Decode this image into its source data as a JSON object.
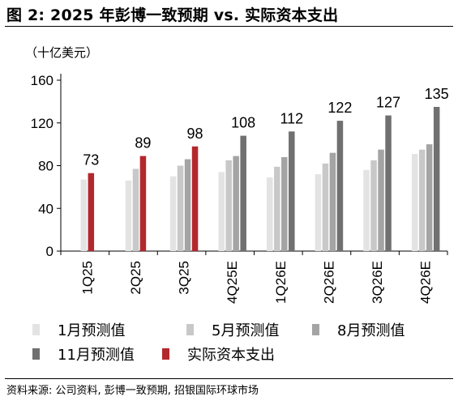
{
  "header": {
    "title": "图 2: 2025 年彭博一致预期 vs. 实际资本支出"
  },
  "footer": {
    "source": "资料来源: 公司资料, 彭博一致预期, 招银国际环球市场"
  },
  "chart_data": {
    "type": "bar",
    "unit_label": "（十亿美元）",
    "categories": [
      "1Q25",
      "2Q25",
      "3Q25",
      "4Q25E",
      "1Q26E",
      "2Q26E",
      "3Q26E",
      "4Q26E"
    ],
    "series": [
      {
        "name": "1月预测值",
        "color": "#e3e3e3",
        "values": [
          67,
          66,
          70,
          74,
          69,
          72,
          76,
          91
        ]
      },
      {
        "name": "5月预测值",
        "color": "#c8c8c8",
        "values": [
          null,
          77,
          80,
          85,
          79,
          82,
          85,
          95
        ]
      },
      {
        "name": "8月预测值",
        "color": "#a4a4a4",
        "values": [
          null,
          null,
          86,
          89,
          88,
          92,
          95,
          100
        ]
      },
      {
        "name": "11月预测值",
        "color": "#707070",
        "values": [
          null,
          null,
          null,
          108,
          112,
          122,
          127,
          135
        ]
      },
      {
        "name": "实际资本支出",
        "color": "#b3282d",
        "values": [
          73,
          89,
          98,
          null,
          null,
          null,
          null,
          null
        ]
      }
    ],
    "top_labels": [
      "73",
      "89",
      "98",
      "108",
      "112",
      "122",
      "127",
      "135"
    ],
    "y_ticks": [
      0,
      40,
      80,
      120,
      160
    ],
    "ylim": [
      0,
      160
    ],
    "grid": false,
    "legend_position": "bottom"
  }
}
